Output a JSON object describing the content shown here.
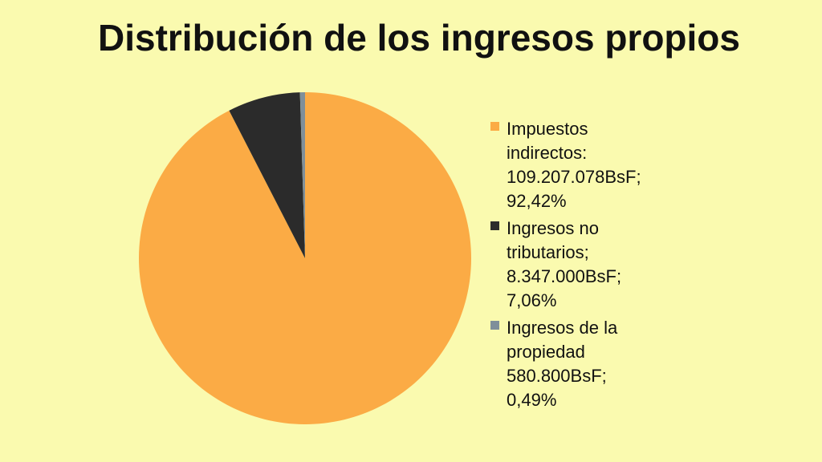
{
  "title": "Distribución de los ingresos propios",
  "chart_data": {
    "type": "pie",
    "title": "Distribución de los ingresos propios",
    "legend_position": "right",
    "slices": [
      {
        "label": "Impuestos indirectos",
        "amount": "109.207.078BsF",
        "percent_label": "92,42%",
        "value": 92.42,
        "color": "#fbab45",
        "legend_lines": [
          "Impuestos",
          "indirectos:",
          "109.207.078BsF;",
          "92,42%"
        ]
      },
      {
        "label": "Ingresos no tributarios",
        "amount": "8.347.000BsF",
        "percent_label": "7,06%",
        "value": 7.06,
        "color": "#2b2b2b",
        "legend_lines": [
          "Ingresos no",
          "tributarios;",
          "8.347.000BsF;",
          "7,06%"
        ]
      },
      {
        "label": "Ingresos de la propiedad",
        "amount": "580.800BsF",
        "percent_label": "0,49%",
        "value": 0.49,
        "color": "#7f8f9a",
        "legend_lines": [
          "Ingresos de la",
          "propiedad",
          "580.800BsF;",
          "0,49%"
        ]
      }
    ]
  }
}
